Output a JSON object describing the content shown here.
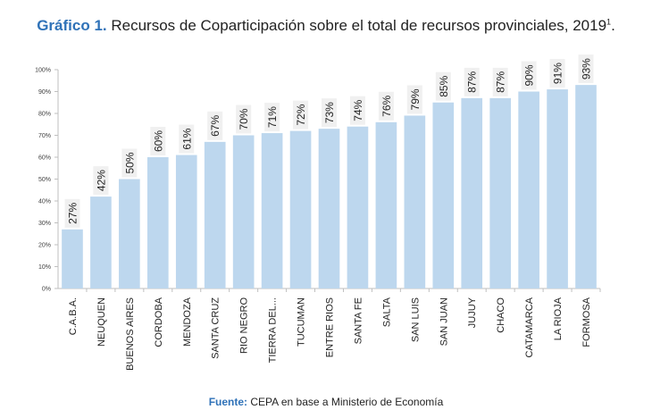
{
  "title": {
    "prefix": "Gráfico 1.",
    "text": "Recursos de Coparticipación sobre el total de recursos provinciales, 2019",
    "footnote_mark": "1",
    "trailing": "."
  },
  "source": {
    "label": "Fuente:",
    "text": "CEPA en base a Ministerio de Economía"
  },
  "colors": {
    "bar": "#bdd7ee",
    "label_box": "#f0f0f0",
    "accent": "#2f72b8"
  },
  "chart_data": {
    "type": "bar",
    "categories": [
      "C.A.B.A.",
      "NEUQUEN",
      "BUENOS AIRES",
      "CORDOBA",
      "MENDOZA",
      "SANTA CRUZ",
      "RIO NEGRO",
      "TIERRA DEL...",
      "TUCUMAN",
      "ENTRE RIOS",
      "SANTA FE",
      "SALTA",
      "SAN LUIS",
      "SAN JUAN",
      "JUJUY",
      "CHACO",
      "CATAMARCA",
      "LA RIOJA",
      "FORMOSA"
    ],
    "values": [
      27,
      42,
      50,
      60,
      61,
      67,
      70,
      71,
      72,
      73,
      74,
      76,
      79,
      85,
      87,
      87,
      90,
      91,
      93
    ],
    "value_labels": [
      "27%",
      "42%",
      "50%",
      "60%",
      "61%",
      "67%",
      "70%",
      "71%",
      "72%",
      "73%",
      "74%",
      "76%",
      "79%",
      "85%",
      "87%",
      "87%",
      "90%",
      "91%",
      "93%"
    ],
    "yticks": [
      "0%",
      "10%",
      "20%",
      "30%",
      "40%",
      "50%",
      "60%",
      "70%",
      "80%",
      "90%",
      "100%"
    ],
    "ylim": [
      0,
      100
    ],
    "xlabel": "",
    "ylabel": "",
    "grid": false,
    "legend": "none"
  }
}
